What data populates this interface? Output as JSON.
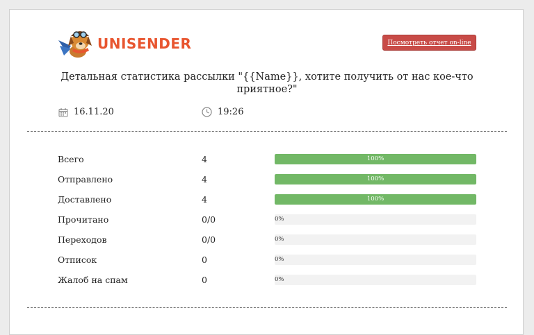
{
  "brand": {
    "logo_text": "UNISENDER",
    "logo_color": "#e8552f"
  },
  "header": {
    "report_button_label": "Посмотреть отчет on-line",
    "report_button_color": "#c84b47"
  },
  "title": "Детальная статистика рассылки \"{{Name}}, хотите получить от нас кое-что приятное?\"",
  "meta": {
    "date_icon": "calendar-icon",
    "date": "16.11.20",
    "time_icon": "clock-icon",
    "time": "19:26"
  },
  "colors": {
    "bar_fill": "#72b866",
    "bar_track": "#f2f2f2"
  },
  "stats": [
    {
      "label": "Всего",
      "value": "4",
      "percent_label": "100%",
      "percent": 100
    },
    {
      "label": "Отправлено",
      "value": "4",
      "percent_label": "100%",
      "percent": 100
    },
    {
      "label": "Доставлено",
      "value": "4",
      "percent_label": "100%",
      "percent": 100
    },
    {
      "label": "Прочитано",
      "value": "0/0",
      "percent_label": "0%",
      "percent": 0
    },
    {
      "label": "Переходов",
      "value": "0/0",
      "percent_label": "0%",
      "percent": 0
    },
    {
      "label": "Отписок",
      "value": "0",
      "percent_label": "0%",
      "percent": 0
    },
    {
      "label": "Жалоб на спам",
      "value": "0",
      "percent_label": "0%",
      "percent": 0
    }
  ]
}
